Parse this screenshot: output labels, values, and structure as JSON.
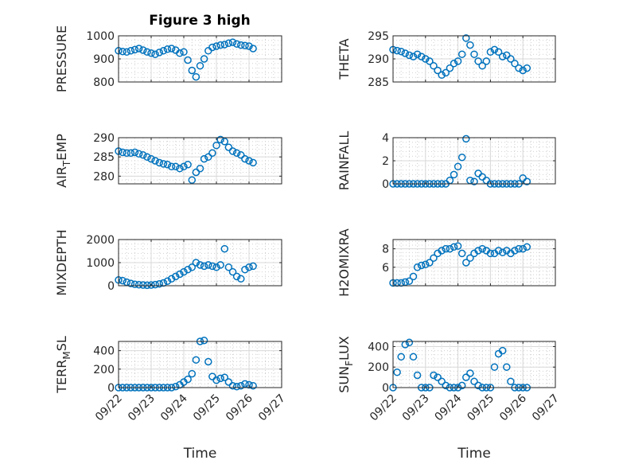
{
  "title": "Figure 3 high",
  "xlabel": "Time",
  "x_ticks": [
    "09/22",
    "09/23",
    "09/24",
    "09/25",
    "09/26",
    "09/27"
  ],
  "marker_color": "#0072BD",
  "chart_data": [
    {
      "type": "scatter",
      "ylabel": "PRESSURE",
      "ylim": [
        800,
        1000
      ],
      "yticks": [
        800,
        900,
        1000
      ],
      "grid": true,
      "series": [
        {
          "x": [
            "09/22 00:00",
            "09/22 03:00",
            "09/22 06:00",
            "09/22 09:00",
            "09/22 12:00",
            "09/22 15:00",
            "09/22 18:00",
            "09/22 21:00",
            "09/23 00:00",
            "09/23 03:00",
            "09/23 06:00",
            "09/23 09:00",
            "09/23 12:00",
            "09/23 15:00",
            "09/23 18:00",
            "09/23 21:00",
            "09/24 00:00",
            "09/24 03:00",
            "09/24 06:00",
            "09/24 09:00",
            "09/24 12:00",
            "09/24 15:00",
            "09/24 18:00",
            "09/24 21:00",
            "09/25 00:00",
            "09/25 03:00",
            "09/25 06:00",
            "09/25 09:00",
            "09/25 12:00",
            "09/25 15:00",
            "09/25 18:00",
            "09/25 21:00",
            "09/26 00:00",
            "09/26 03:00"
          ],
          "y": [
            935,
            932,
            930,
            935,
            940,
            945,
            938,
            930,
            925,
            920,
            928,
            935,
            942,
            945,
            938,
            925,
            930,
            895,
            850,
            822,
            870,
            900,
            935,
            950,
            955,
            960,
            962,
            968,
            972,
            965,
            960,
            958,
            955,
            945
          ]
        }
      ]
    },
    {
      "type": "scatter",
      "ylabel": "THETA",
      "ylim": [
        285,
        295
      ],
      "yticks": [
        285,
        290,
        295
      ],
      "grid": true,
      "series": [
        {
          "x": [
            "09/22 00:00",
            "09/22 03:00",
            "09/22 06:00",
            "09/22 09:00",
            "09/22 12:00",
            "09/22 15:00",
            "09/22 18:00",
            "09/22 21:00",
            "09/23 00:00",
            "09/23 03:00",
            "09/23 06:00",
            "09/23 09:00",
            "09/23 12:00",
            "09/23 15:00",
            "09/23 18:00",
            "09/23 21:00",
            "09/24 00:00",
            "09/24 03:00",
            "09/24 06:00",
            "09/24 09:00",
            "09/24 12:00",
            "09/24 15:00",
            "09/24 18:00",
            "09/24 21:00",
            "09/25 00:00",
            "09/25 03:00",
            "09/25 06:00",
            "09/25 09:00",
            "09/25 12:00",
            "09/25 15:00",
            "09/25 18:00",
            "09/25 21:00",
            "09/26 00:00",
            "09/26 03:00"
          ],
          "y": [
            292,
            291.8,
            291.6,
            291.2,
            290.8,
            290.5,
            291,
            290.5,
            290,
            289.5,
            288.5,
            287.5,
            286.5,
            287,
            288,
            289,
            289.5,
            291,
            294.5,
            293,
            291,
            289.5,
            288.5,
            289.5,
            291.5,
            292,
            291.5,
            290.5,
            290.8,
            290,
            289,
            288,
            287.5,
            288
          ]
        }
      ]
    },
    {
      "type": "scatter",
      "ylabel": "AIR_TEMP",
      "ylim": [
        278,
        290
      ],
      "yticks": [
        280,
        285,
        290
      ],
      "grid": true,
      "series": [
        {
          "x": [
            "09/22 00:00",
            "09/22 03:00",
            "09/22 06:00",
            "09/22 09:00",
            "09/22 12:00",
            "09/22 15:00",
            "09/22 18:00",
            "09/22 21:00",
            "09/23 00:00",
            "09/23 03:00",
            "09/23 06:00",
            "09/23 09:00",
            "09/23 12:00",
            "09/23 15:00",
            "09/23 18:00",
            "09/23 21:00",
            "09/24 00:00",
            "09/24 03:00",
            "09/24 06:00",
            "09/24 09:00",
            "09/24 12:00",
            "09/24 15:00",
            "09/24 18:00",
            "09/24 21:00",
            "09/25 00:00",
            "09/25 03:00",
            "09/25 06:00",
            "09/25 09:00",
            "09/25 12:00",
            "09/25 15:00",
            "09/25 18:00",
            "09/25 21:00",
            "09/26 00:00",
            "09/26 03:00"
          ],
          "y": [
            286.5,
            286.2,
            286,
            286,
            286.2,
            285.8,
            285.5,
            285,
            284.5,
            284,
            283.5,
            283.2,
            283,
            282.5,
            282.5,
            282,
            282.5,
            283,
            279,
            281,
            282,
            284.5,
            285,
            286,
            288,
            289.5,
            289,
            287.5,
            286.5,
            286,
            285.5,
            284.5,
            284,
            283.5
          ]
        }
      ]
    },
    {
      "type": "scatter",
      "ylabel": "RAINFALL",
      "ylim": [
        0,
        4
      ],
      "yticks": [
        0,
        2,
        4
      ],
      "grid": true,
      "series": [
        {
          "x": [
            "09/22 00:00",
            "09/22 03:00",
            "09/22 06:00",
            "09/22 09:00",
            "09/22 12:00",
            "09/22 15:00",
            "09/22 18:00",
            "09/22 21:00",
            "09/23 00:00",
            "09/23 03:00",
            "09/23 06:00",
            "09/23 09:00",
            "09/23 12:00",
            "09/23 15:00",
            "09/23 18:00",
            "09/23 21:00",
            "09/24 00:00",
            "09/24 03:00",
            "09/24 06:00",
            "09/24 09:00",
            "09/24 12:00",
            "09/24 15:00",
            "09/24 18:00",
            "09/24 21:00",
            "09/25 00:00",
            "09/25 03:00",
            "09/25 06:00",
            "09/25 09:00",
            "09/25 12:00",
            "09/25 15:00",
            "09/25 18:00",
            "09/25 21:00",
            "09/26 00:00",
            "09/26 03:00"
          ],
          "y": [
            0,
            0,
            0,
            0,
            0,
            0,
            0,
            0,
            0,
            0,
            0,
            0,
            0,
            0,
            0.3,
            0.8,
            1.5,
            2.3,
            3.9,
            0.3,
            0.2,
            0.9,
            0.6,
            0.3,
            0,
            0,
            0,
            0,
            0,
            0,
            0,
            0,
            0.5,
            0.2
          ]
        }
      ]
    },
    {
      "type": "scatter",
      "ylabel": "MIXDEPTH",
      "ylim": [
        0,
        2000
      ],
      "yticks": [
        0,
        1000,
        2000
      ],
      "grid": true,
      "series": [
        {
          "x": [
            "09/22 00:00",
            "09/22 03:00",
            "09/22 06:00",
            "09/22 09:00",
            "09/22 12:00",
            "09/22 15:00",
            "09/22 18:00",
            "09/22 21:00",
            "09/23 00:00",
            "09/23 03:00",
            "09/23 06:00",
            "09/23 09:00",
            "09/23 12:00",
            "09/23 15:00",
            "09/23 18:00",
            "09/23 21:00",
            "09/24 00:00",
            "09/24 03:00",
            "09/24 06:00",
            "09/24 09:00",
            "09/24 12:00",
            "09/24 15:00",
            "09/24 18:00",
            "09/24 21:00",
            "09/25 00:00",
            "09/25 03:00",
            "09/25 06:00",
            "09/25 09:00",
            "09/25 12:00",
            "09/25 15:00",
            "09/25 18:00",
            "09/25 21:00",
            "09/26 00:00",
            "09/26 03:00"
          ],
          "y": [
            250,
            220,
            150,
            100,
            60,
            40,
            30,
            20,
            30,
            50,
            80,
            120,
            200,
            300,
            400,
            500,
            600,
            700,
            800,
            1000,
            900,
            850,
            900,
            850,
            800,
            900,
            1600,
            800,
            600,
            400,
            300,
            700,
            800,
            850
          ]
        }
      ]
    },
    {
      "type": "scatter",
      "ylabel": "H2OMIXRA",
      "ylim": [
        4,
        9
      ],
      "yticks": [
        6,
        8
      ],
      "grid": true,
      "series": [
        {
          "x": [
            "09/22 00:00",
            "09/22 03:00",
            "09/22 06:00",
            "09/22 09:00",
            "09/22 12:00",
            "09/22 15:00",
            "09/22 18:00",
            "09/22 21:00",
            "09/23 00:00",
            "09/23 03:00",
            "09/23 06:00",
            "09/23 09:00",
            "09/23 12:00",
            "09/23 15:00",
            "09/23 18:00",
            "09/23 21:00",
            "09/24 00:00",
            "09/24 03:00",
            "09/24 06:00",
            "09/24 09:00",
            "09/24 12:00",
            "09/24 15:00",
            "09/24 18:00",
            "09/24 21:00",
            "09/25 00:00",
            "09/25 03:00",
            "09/25 06:00",
            "09/25 09:00",
            "09/25 12:00",
            "09/25 15:00",
            "09/25 18:00",
            "09/25 21:00",
            "09/26 00:00",
            "09/26 03:00"
          ],
          "y": [
            4.3,
            4.3,
            4.3,
            4.4,
            4.5,
            5,
            6,
            6.2,
            6.3,
            6.5,
            7,
            7.5,
            7.8,
            8,
            8,
            8.2,
            8.3,
            7.5,
            6.5,
            7,
            7.5,
            7.8,
            8,
            7.8,
            7.5,
            7.5,
            7.8,
            7.6,
            7.8,
            7.5,
            7.8,
            8,
            8,
            8.2
          ]
        }
      ]
    },
    {
      "type": "scatter",
      "ylabel": "TERR_MSL",
      "ylim": [
        0,
        500
      ],
      "yticks": [
        0,
        200,
        400
      ],
      "grid": true,
      "series": [
        {
          "x": [
            "09/22 00:00",
            "09/22 03:00",
            "09/22 06:00",
            "09/22 09:00",
            "09/22 12:00",
            "09/22 15:00",
            "09/22 18:00",
            "09/22 21:00",
            "09/23 00:00",
            "09/23 03:00",
            "09/23 06:00",
            "09/23 09:00",
            "09/23 12:00",
            "09/23 15:00",
            "09/23 18:00",
            "09/23 21:00",
            "09/24 00:00",
            "09/24 03:00",
            "09/24 06:00",
            "09/24 09:00",
            "09/24 12:00",
            "09/24 15:00",
            "09/24 18:00",
            "09/24 21:00",
            "09/25 00:00",
            "09/25 03:00",
            "09/25 06:00",
            "09/25 09:00",
            "09/25 12:00",
            "09/25 15:00",
            "09/25 18:00",
            "09/25 21:00",
            "09/26 00:00",
            "09/26 03:00"
          ],
          "y": [
            0,
            0,
            0,
            0,
            0,
            0,
            0,
            0,
            0,
            0,
            0,
            0,
            0,
            0,
            10,
            30,
            60,
            90,
            150,
            300,
            500,
            510,
            280,
            120,
            80,
            100,
            110,
            60,
            20,
            10,
            20,
            40,
            30,
            20
          ]
        }
      ]
    },
    {
      "type": "scatter",
      "ylabel": "SUN_FLUX",
      "ylim": [
        0,
        450
      ],
      "yticks": [
        0,
        200,
        400
      ],
      "grid": true,
      "series": [
        {
          "x": [
            "09/22 00:00",
            "09/22 03:00",
            "09/22 06:00",
            "09/22 09:00",
            "09/22 12:00",
            "09/22 15:00",
            "09/22 18:00",
            "09/22 21:00",
            "09/23 00:00",
            "09/23 03:00",
            "09/23 06:00",
            "09/23 09:00",
            "09/23 12:00",
            "09/23 15:00",
            "09/23 18:00",
            "09/23 21:00",
            "09/24 00:00",
            "09/24 03:00",
            "09/24 06:00",
            "09/24 09:00",
            "09/24 12:00",
            "09/24 15:00",
            "09/24 18:00",
            "09/24 21:00",
            "09/25 00:00",
            "09/25 03:00",
            "09/25 06:00",
            "09/25 09:00",
            "09/25 12:00",
            "09/25 15:00",
            "09/25 18:00",
            "09/25 21:00",
            "09/26 00:00",
            "09/26 03:00"
          ],
          "y": [
            0,
            150,
            300,
            420,
            440,
            300,
            120,
            0,
            0,
            0,
            120,
            100,
            60,
            20,
            0,
            0,
            0,
            20,
            100,
            140,
            60,
            20,
            0,
            0,
            0,
            200,
            330,
            360,
            200,
            60,
            0,
            0,
            0,
            0
          ]
        }
      ]
    }
  ]
}
